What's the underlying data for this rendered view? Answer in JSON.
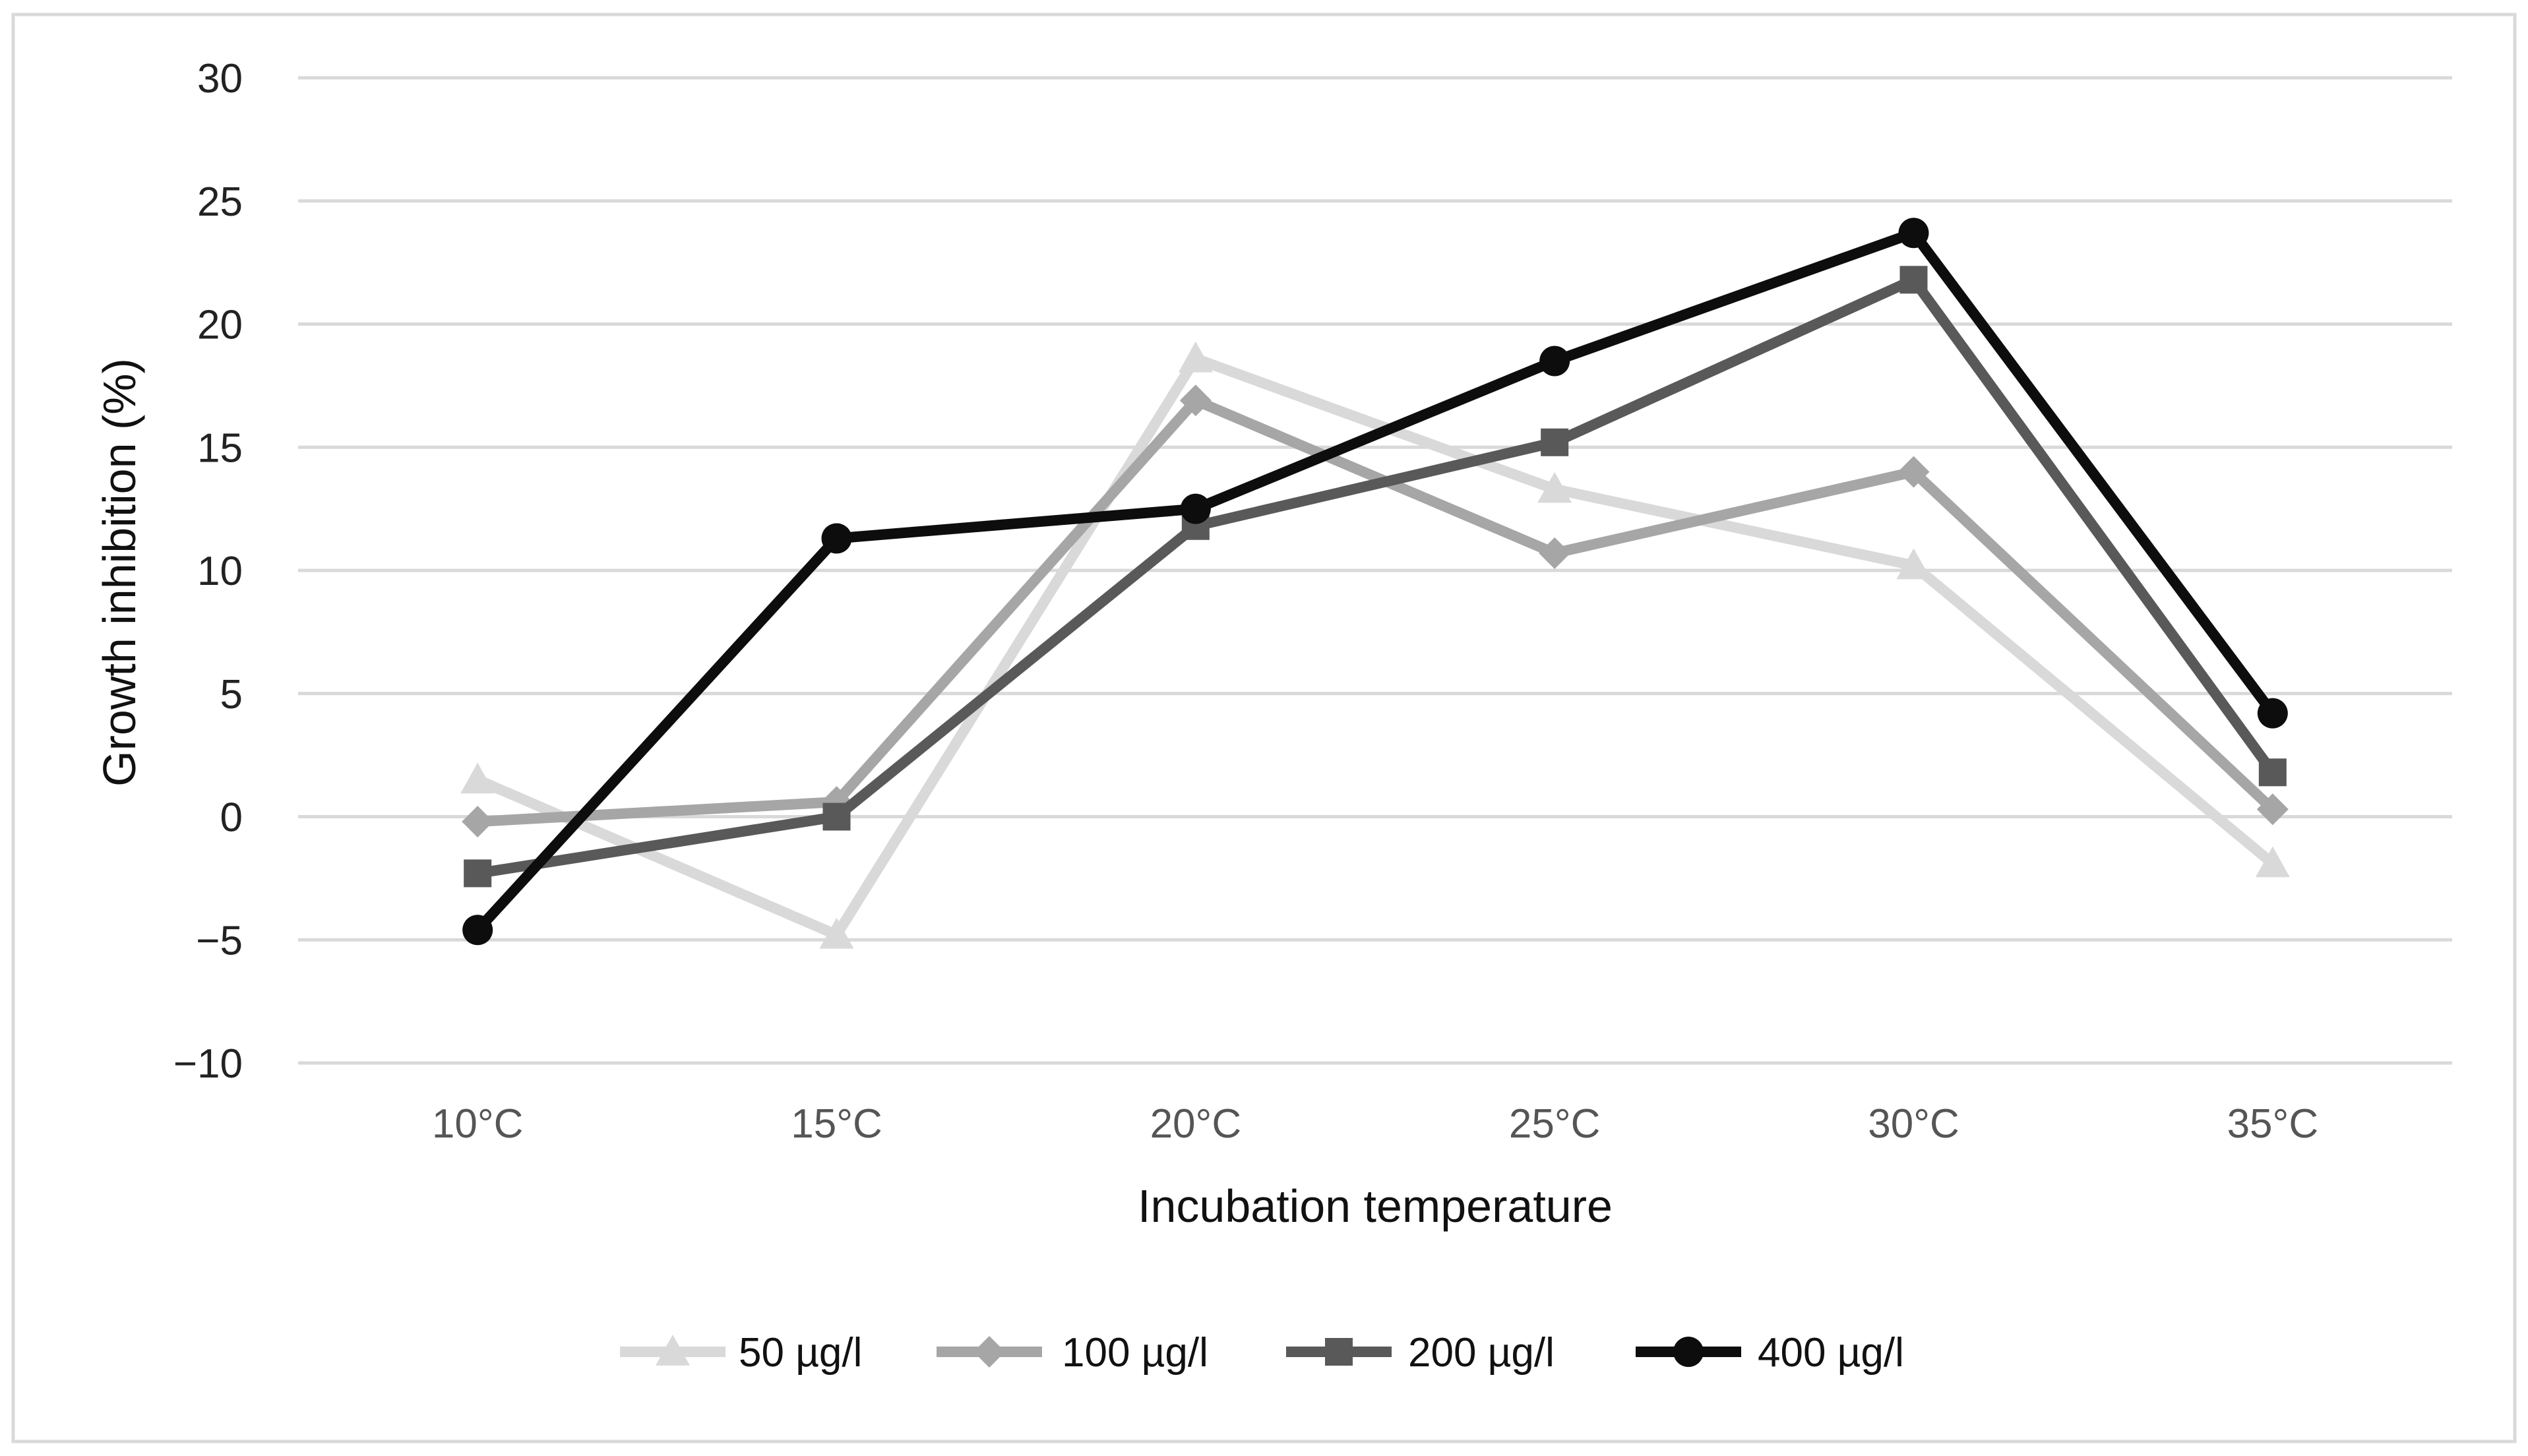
{
  "chart_data": {
    "type": "line",
    "title": "",
    "xlabel": "Incubation temperature",
    "ylabel": "Growth inhibition (%)",
    "categories": [
      "10°C",
      "15°C",
      "20°C",
      "25°C",
      "30°C",
      "35°C"
    ],
    "ylim": [
      -10,
      30
    ],
    "yticks": [
      30,
      25,
      20,
      15,
      10,
      5,
      0,
      -5,
      -10
    ],
    "ytick_labels": [
      "30",
      "25",
      "20",
      "15",
      "10",
      "5",
      "0",
      "−5",
      "−10"
    ],
    "grid": true,
    "legend_position": "bottom",
    "series": [
      {
        "name": "50 µg/l",
        "values": [
          1.5,
          -4.8,
          18.6,
          13.3,
          10.2,
          -1.9
        ],
        "color": "#d9d9d9",
        "marker": "triangle"
      },
      {
        "name": "100 µg/l",
        "values": [
          -0.2,
          0.6,
          16.9,
          10.7,
          14.0,
          0.3
        ],
        "color": "#a6a6a6",
        "marker": "diamond"
      },
      {
        "name": "200 µg/l",
        "values": [
          -2.3,
          0.0,
          11.8,
          15.2,
          21.8,
          1.8
        ],
        "color": "#595959",
        "marker": "square"
      },
      {
        "name": "400 µg/l",
        "values": [
          -4.6,
          11.3,
          12.5,
          18.5,
          23.7,
          4.2
        ],
        "color": "#0d0d0d",
        "marker": "circle"
      }
    ]
  }
}
